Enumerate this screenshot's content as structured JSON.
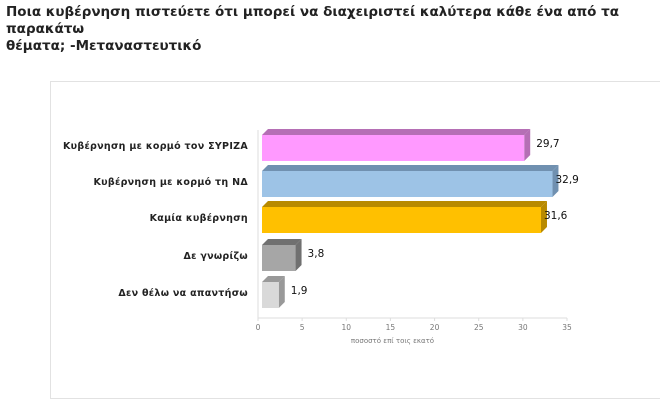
{
  "title_line1": "Ποια κυβέρνηση  πιστεύετε ότι μπορεί να διαχειριστεί καλύτερα κάθε ένα από τα παρακάτω",
  "title_line2": "θέματα;  -Μεταναστευτικό",
  "chart_data": {
    "type": "bar",
    "orientation": "horizontal",
    "style": "3d",
    "categories": [
      "Κυβέρνηση με κορμό τον ΣΥΡΙΖΑ",
      "Κυβέρνηση με κορμό τη ΝΔ",
      "Καμία κυβέρνηση",
      "Δε γνωρίζω",
      "Δεν θέλω να απαντήσω"
    ],
    "values": [
      29.7,
      32.9,
      31.6,
      3.8,
      1.9
    ],
    "value_labels": [
      "29,7",
      "32,9",
      "31,6",
      "3,8",
      "1,9"
    ],
    "colors": [
      "#ff99ff",
      "#9dc3e6",
      "#ffc000",
      "#a6a6a6",
      "#d9d9d9"
    ],
    "side_colors": [
      "#b56fb5",
      "#7090b0",
      "#b88a00",
      "#707070",
      "#999999"
    ],
    "xlabel": "ποσοστό επί τοις εκατό",
    "xlim": [
      0,
      35
    ],
    "xticks": [
      "0",
      "5",
      "10",
      "15",
      "20",
      "25",
      "30",
      "35"
    ],
    "grid": false,
    "legend": "none"
  }
}
